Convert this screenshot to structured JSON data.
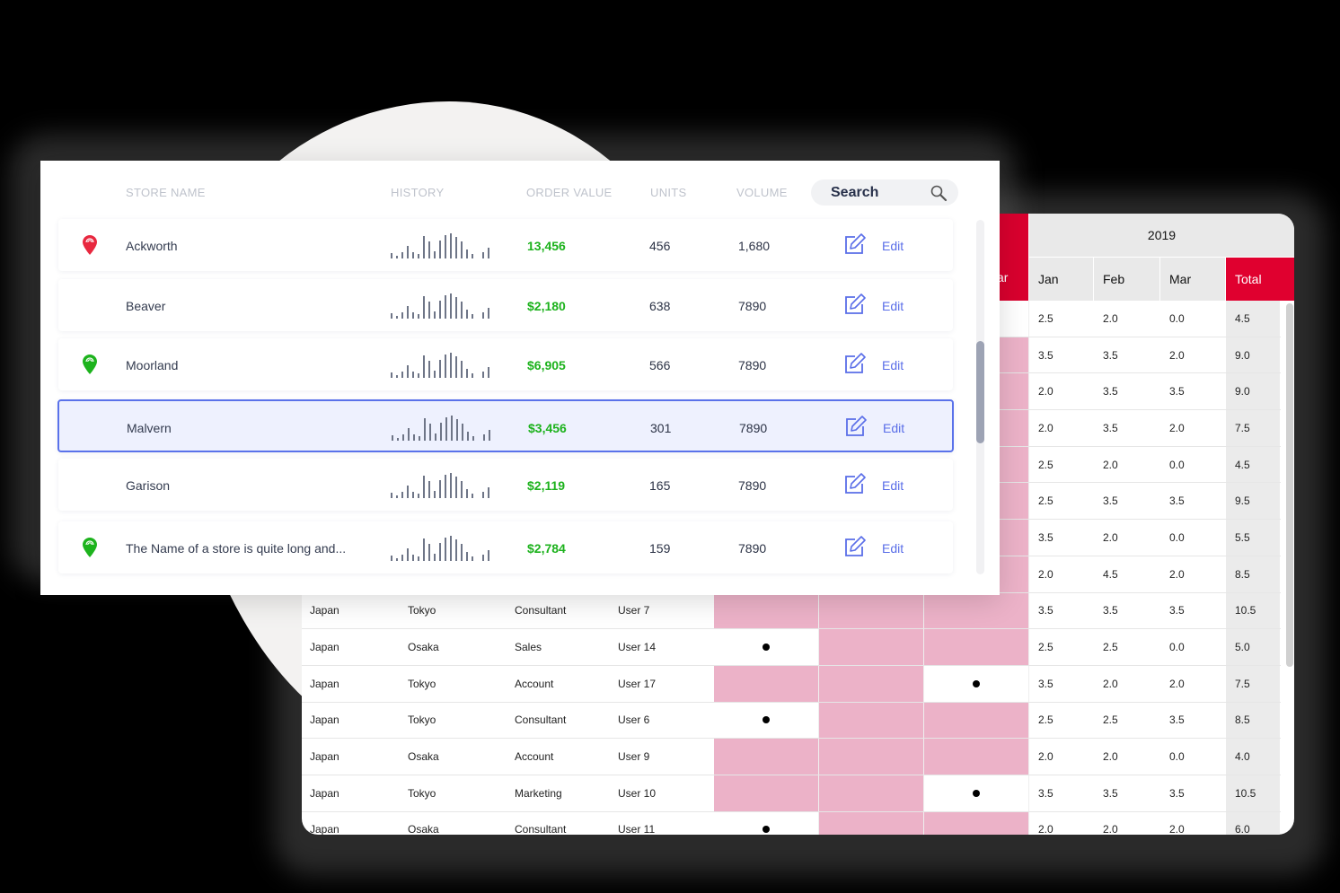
{
  "store_panel": {
    "columns": [
      "STORE NAME",
      "HISTORY",
      "ORDER VALUE",
      "UNITS",
      "VOLUME"
    ],
    "search": {
      "placeholder": "Search",
      "icon": "search-icon"
    },
    "edit_label": "Edit",
    "rows": [
      {
        "name": "Ackworth",
        "pin": "red",
        "order_value": "13,456",
        "units": "456",
        "volume": "1,680",
        "selected": false
      },
      {
        "name": "Beaver",
        "pin": "none",
        "order_value": "$2,180",
        "units": "638",
        "volume": "7890",
        "selected": false
      },
      {
        "name": "Moorland",
        "pin": "green",
        "order_value": "$6,905",
        "units": "566",
        "volume": "7890",
        "selected": false
      },
      {
        "name": "Malvern",
        "pin": "none",
        "order_value": "$3,456",
        "units": "301",
        "volume": "7890",
        "selected": true
      },
      {
        "name": "Garison",
        "pin": "none",
        "order_value": "$2,119",
        "units": "165",
        "volume": "7890",
        "selected": false
      },
      {
        "name": "The Name of a store is quite long and...",
        "pin": "green",
        "order_value": "$2,784",
        "units": "159",
        "volume": "7890",
        "selected": false
      }
    ],
    "history_bars": [
      6,
      3,
      7,
      14,
      7,
      5,
      25,
      19,
      8,
      20,
      26,
      28,
      24,
      19,
      10,
      5,
      0,
      7,
      12
    ],
    "colors": {
      "pin_red": "#e8283f",
      "pin_green": "#1db31d",
      "value_green": "#1cb21c",
      "accent": "#5a6ee8",
      "selected_bg": "#eef1fe"
    }
  },
  "sheet_panel": {
    "year": "2019",
    "partial_header": "ar",
    "months": [
      "Jan",
      "Feb",
      "Mar"
    ],
    "total_label": "Total",
    "colors": {
      "red": "#e0002f",
      "pink": "#ecb2c8",
      "header_gray": "#e9e9e9"
    },
    "rows": [
      {
        "country": "",
        "city": "",
        "role": "",
        "user": "",
        "flags": [
          "",
          "",
          ""
        ],
        "jan": "2.5",
        "feb": "2.0",
        "mar": "0.0",
        "total": "4.5"
      },
      {
        "country": "",
        "city": "",
        "role": "",
        "user": "",
        "flags": [
          "pink",
          "pink",
          "pink"
        ],
        "jan": "3.5",
        "feb": "3.5",
        "mar": "2.0",
        "total": "9.0"
      },
      {
        "country": "",
        "city": "",
        "role": "",
        "user": "",
        "flags": [
          "pink",
          "pink",
          "pink"
        ],
        "jan": "2.0",
        "feb": "3.5",
        "mar": "3.5",
        "total": "9.0"
      },
      {
        "country": "",
        "city": "",
        "role": "",
        "user": "",
        "flags": [
          "pink",
          "pink",
          "pink"
        ],
        "jan": "2.0",
        "feb": "3.5",
        "mar": "2.0",
        "total": "7.5"
      },
      {
        "country": "",
        "city": "",
        "role": "",
        "user": "",
        "flags": [
          "pink",
          "pink",
          "pink"
        ],
        "jan": "2.5",
        "feb": "2.0",
        "mar": "0.0",
        "total": "4.5"
      },
      {
        "country": "",
        "city": "",
        "role": "",
        "user": "",
        "flags": [
          "pink",
          "pink",
          "pink"
        ],
        "jan": "2.5",
        "feb": "3.5",
        "mar": "3.5",
        "total": "9.5"
      },
      {
        "country": "",
        "city": "",
        "role": "",
        "user": "",
        "flags": [
          "pink",
          "pink",
          "pink"
        ],
        "jan": "3.5",
        "feb": "2.0",
        "mar": "0.0",
        "total": "5.5"
      },
      {
        "country": "",
        "city": "",
        "role": "",
        "user": "",
        "flags": [
          "pink",
          "pink",
          "pink"
        ],
        "jan": "2.0",
        "feb": "4.5",
        "mar": "2.0",
        "total": "8.5"
      },
      {
        "country": "Japan",
        "city": "Tokyo",
        "role": "Consultant",
        "user": "User 7",
        "flags": [
          "pink",
          "pink",
          "pink"
        ],
        "jan": "3.5",
        "feb": "3.5",
        "mar": "3.5",
        "total": "10.5"
      },
      {
        "country": "Japan",
        "city": "Osaka",
        "role": "Sales",
        "user": "User 14",
        "flags": [
          "dot",
          "pink",
          "pink"
        ],
        "jan": "2.5",
        "feb": "2.5",
        "mar": "0.0",
        "total": "5.0"
      },
      {
        "country": "Japan",
        "city": "Tokyo",
        "role": "Account",
        "user": "User 17",
        "flags": [
          "pink",
          "pink",
          "dot"
        ],
        "jan": "3.5",
        "feb": "2.0",
        "mar": "2.0",
        "total": "7.5"
      },
      {
        "country": "Japan",
        "city": "Tokyo",
        "role": "Consultant",
        "user": "User 6",
        "flags": [
          "dot",
          "pink",
          "pink"
        ],
        "jan": "2.5",
        "feb": "2.5",
        "mar": "3.5",
        "total": "8.5"
      },
      {
        "country": "Japan",
        "city": "Osaka",
        "role": "Account",
        "user": "User 9",
        "flags": [
          "pink",
          "pink",
          "pink"
        ],
        "jan": "2.0",
        "feb": "2.0",
        "mar": "0.0",
        "total": "4.0"
      },
      {
        "country": "Japan",
        "city": "Tokyo",
        "role": "Marketing",
        "user": "User 10",
        "flags": [
          "pink",
          "pink",
          "dot"
        ],
        "jan": "3.5",
        "feb": "3.5",
        "mar": "3.5",
        "total": "10.5"
      },
      {
        "country": "Japan",
        "city": "Osaka",
        "role": "Consultant",
        "user": "User 11",
        "flags": [
          "dot",
          "pink",
          "pink"
        ],
        "jan": "2.0",
        "feb": "2.0",
        "mar": "2.0",
        "total": "6.0"
      }
    ]
  }
}
